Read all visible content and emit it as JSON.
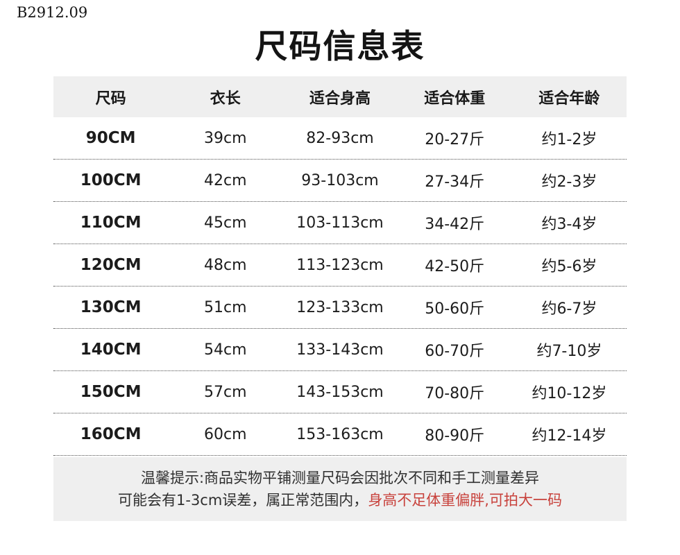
{
  "page": {
    "code": "B2912.09",
    "title": "尺码信息表"
  },
  "table": {
    "headers": [
      "尺码",
      "衣长",
      "适合身高",
      "适合体重",
      "适合年龄"
    ],
    "rows": [
      [
        "90CM",
        "39cm",
        "82-93cm",
        "20-27斤",
        "约1-2岁"
      ],
      [
        "100CM",
        "42cm",
        "93-103cm",
        "27-34斤",
        "约2-3岁"
      ],
      [
        "110CM",
        "45cm",
        "103-113cm",
        "34-42斤",
        "约3-4岁"
      ],
      [
        "120CM",
        "48cm",
        "113-123cm",
        "42-50斤",
        "约5-6岁"
      ],
      [
        "130CM",
        "51cm",
        "123-133cm",
        "50-60斤",
        "约6-7岁"
      ],
      [
        "140CM",
        "54cm",
        "133-143cm",
        "60-70斤",
        "约7-10岁"
      ],
      [
        "150CM",
        "57cm",
        "143-153cm",
        "70-80斤",
        "约10-12岁"
      ],
      [
        "160CM",
        "60cm",
        "153-163cm",
        "80-90斤",
        "约12-14岁"
      ]
    ]
  },
  "note": {
    "line1": "温馨提示:商品实物平铺测量尺码会因批次不同和手工测量差异",
    "line2_prefix": "可能会有1-3cm误差，属正常范围内，",
    "line2_highlight": "身高不足体重偏胖,可拍大一码",
    "highlight_color": "#c8423c"
  },
  "colors": {
    "band_bg": "#efefef",
    "text": "#1a1a1a"
  }
}
